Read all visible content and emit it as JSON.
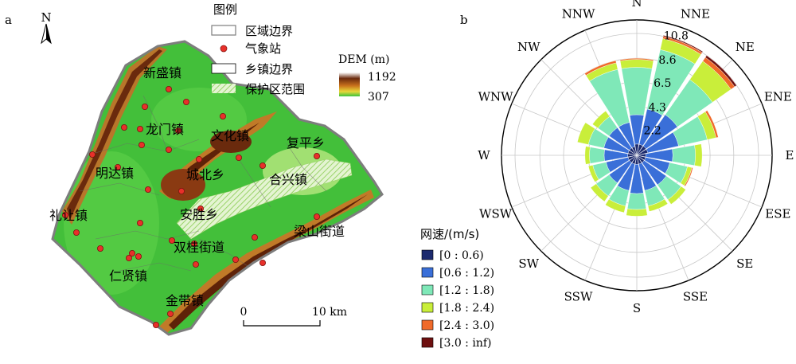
{
  "panels": {
    "a": "a",
    "b": "b"
  },
  "map": {
    "north": "N",
    "legend_title": "图例",
    "legend_items": [
      {
        "name": "region-boundary",
        "label": "区域边界"
      },
      {
        "name": "weather-station",
        "label": "气象站"
      },
      {
        "name": "township-boundary",
        "label": "乡镇边界"
      },
      {
        "name": "protected-area",
        "label": "保护区范围"
      }
    ],
    "dem": {
      "title": "DEM (m)",
      "max": "1192",
      "min": "307"
    },
    "scale": {
      "zero": "0",
      "end": "10 km"
    },
    "towns": [
      "新盛镇",
      "龙门镇",
      "文化镇",
      "复平乡",
      "明达镇",
      "城北乡",
      "合兴镇",
      "礼让镇",
      "安胜乡",
      "梁山街道",
      "双桂街道",
      "仁贤镇",
      "金带镇"
    ],
    "colors": {
      "station": "#e8302a",
      "protected_hatch": "#b6e08c",
      "green": "#4ec63c",
      "brown": "#7a2d0f"
    }
  },
  "rose": {
    "title": "网速/(m/s)",
    "directions": [
      "N",
      "NNE",
      "NE",
      "ENE",
      "E",
      "ESE",
      "SE",
      "SSE",
      "S",
      "SSW",
      "SW",
      "WSW",
      "W",
      "WNW",
      "NW",
      "NNW"
    ],
    "ring_labels": [
      "2.2",
      "4.3",
      "6.5",
      "8.6",
      "10.8"
    ],
    "legend": [
      {
        "label": "[0 : 0.6)",
        "color": "#1c2a6e"
      },
      {
        "label": "[0.6 : 1.2)",
        "color": "#3a6fd8"
      },
      {
        "label": "[1.2 : 1.8)",
        "color": "#7fe8b8"
      },
      {
        "label": "[1.8 : 2.4)",
        "color": "#c9ee3a"
      },
      {
        "label": "[2.4 : 3.0)",
        "color": "#f06a2a"
      },
      {
        "label": "[3.0 : inf)",
        "color": "#6e1010"
      }
    ]
  }
}
